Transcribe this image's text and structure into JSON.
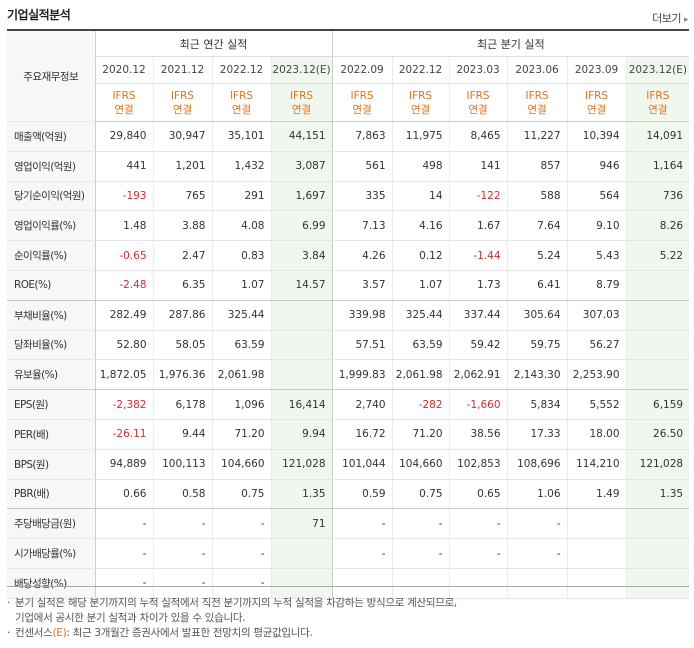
{
  "header": {
    "title": "기업실적분석",
    "more_label": "더보기"
  },
  "table": {
    "row_header_label": "주요재무정보",
    "groups": {
      "annual": "최근 연간 실적",
      "quarter": "최근 분기 실적"
    },
    "periods": [
      "2020.12",
      "2021.12",
      "2022.12",
      "2023.12(E)",
      "2022.09",
      "2022.12",
      "2023.03",
      "2023.06",
      "2023.09",
      "2023.12(E)"
    ],
    "ifrs": [
      "IFRS",
      "IFRS",
      "IFRS",
      "IFRS",
      "IFRS",
      "IFRS",
      "IFRS",
      "IFRS",
      "IFRS",
      "IFRS"
    ],
    "consol": [
      "연결",
      "연결",
      "연결",
      "연결",
      "연결",
      "연결",
      "연결",
      "연결",
      "연결",
      "연결"
    ],
    "rows": [
      {
        "label": "매출액(억원)",
        "values": [
          "29,840",
          "30,947",
          "35,101",
          "44,151",
          "7,863",
          "11,975",
          "8,465",
          "11,227",
          "10,394",
          "14,091"
        ]
      },
      {
        "label": "영업이익(억원)",
        "values": [
          "441",
          "1,201",
          "1,432",
          "3,087",
          "561",
          "498",
          "141",
          "857",
          "946",
          "1,164"
        ]
      },
      {
        "label": "당기순이익(억원)",
        "values": [
          "-193",
          "765",
          "291",
          "1,697",
          "335",
          "14",
          "-122",
          "588",
          "564",
          "736"
        ]
      },
      {
        "label": "영업이익률(%)",
        "values": [
          "1.48",
          "3.88",
          "4.08",
          "6.99",
          "7.13",
          "4.16",
          "1.67",
          "7.64",
          "9.10",
          "8.26"
        ]
      },
      {
        "label": "순이익률(%)",
        "values": [
          "-0.65",
          "2.47",
          "0.83",
          "3.84",
          "4.26",
          "0.12",
          "-1.44",
          "5.24",
          "5.43",
          "5.22"
        ]
      },
      {
        "label": "ROE(%)",
        "values": [
          "-2.48",
          "6.35",
          "1.07",
          "14.57",
          "3.57",
          "1.07",
          "1.73",
          "6.41",
          "8.79",
          ""
        ]
      },
      {
        "label": "부채비율(%)",
        "values": [
          "282.49",
          "287.86",
          "325.44",
          "",
          "339.98",
          "325.44",
          "337.44",
          "305.64",
          "307.03",
          ""
        ]
      },
      {
        "label": "당좌비율(%)",
        "values": [
          "52.80",
          "58.05",
          "63.59",
          "",
          "57.51",
          "63.59",
          "59.42",
          "59.75",
          "56.27",
          ""
        ]
      },
      {
        "label": "유보율(%)",
        "values": [
          "1,872.05",
          "1,976.36",
          "2,061.98",
          "",
          "1,999.83",
          "2,061.98",
          "2,062.91",
          "2,143.30",
          "2,253.90",
          ""
        ]
      },
      {
        "label": "EPS(원)",
        "values": [
          "-2,382",
          "6,178",
          "1,096",
          "16,414",
          "2,740",
          "-282",
          "-1,660",
          "5,834",
          "5,552",
          "6,159"
        ]
      },
      {
        "label": "PER(배)",
        "values": [
          "-26.11",
          "9.44",
          "71.20",
          "9.94",
          "16.72",
          "71.20",
          "38.56",
          "17.33",
          "18.00",
          "26.50"
        ]
      },
      {
        "label": "BPS(원)",
        "values": [
          "94,889",
          "100,113",
          "104,660",
          "121,028",
          "101,044",
          "104,660",
          "102,853",
          "108,696",
          "114,210",
          "121,028"
        ]
      },
      {
        "label": "PBR(배)",
        "values": [
          "0.66",
          "0.58",
          "0.75",
          "1.35",
          "0.59",
          "0.75",
          "0.65",
          "1.06",
          "1.49",
          "1.35"
        ]
      },
      {
        "label": "주당배당금(원)",
        "values": [
          "-",
          "-",
          "-",
          "71",
          "-",
          "-",
          "-",
          "-",
          "",
          ""
        ]
      },
      {
        "label": "시가배당률(%)",
        "values": [
          "-",
          "-",
          "-",
          "",
          "-",
          "-",
          "-",
          "-",
          "",
          ""
        ]
      },
      {
        "label": "배당성향(%)",
        "values": [
          "-",
          "-",
          "-",
          "",
          "",
          "",
          "",
          "",
          "",
          ""
        ]
      }
    ]
  },
  "notes": {
    "line1": "분기 실적은 해당 분기까지의 누적 실적에서 직전 분기까지의 누적 실적을 차감하는 방식으로 계산되므로,",
    "line2": "기업에서 공시한 분기 실적과 차이가 있을 수 있습니다.",
    "line3_pre": "컨센서스",
    "line3_e": "(E)",
    "line3_post": ": 최근 3개월간 증권사에서 발표한 전망치의 평균값입니다."
  }
}
